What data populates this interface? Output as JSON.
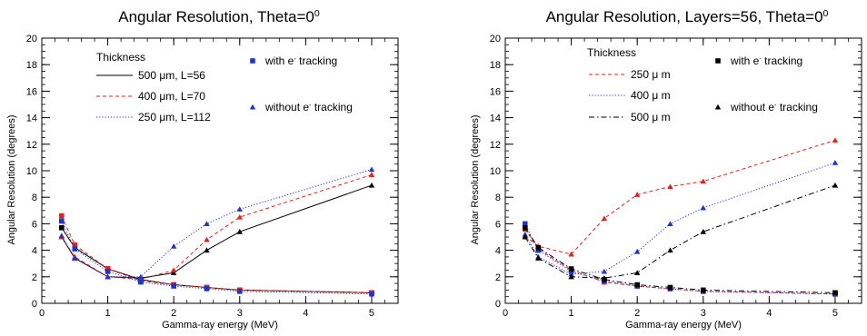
{
  "chart_data": [
    {
      "type": "line",
      "title_main": "Angular Resolution, Theta=0",
      "title_sup": "0",
      "xlabel": "Gamma-ray energy (MeV)",
      "ylabel": "Angular Resolution (degrees)",
      "xlim": [
        0,
        5.4
      ],
      "ylim": [
        0,
        20
      ],
      "xticks": [
        "0",
        "1",
        "2",
        "3",
        "4",
        "5"
      ],
      "yticks": [
        "0",
        "2",
        "4",
        "6",
        "8",
        "10",
        "12",
        "14",
        "16",
        "18",
        "20"
      ],
      "legend_title": "Thickness",
      "series": [
        {
          "name": "500 μm, L=56",
          "color": "#000000",
          "dash": "solid",
          "without": [
            [
              0.3,
              5.0
            ],
            [
              0.5,
              3.4
            ],
            [
              1,
              2.0
            ],
            [
              1.5,
              1.9
            ],
            [
              2,
              2.3
            ],
            [
              2.5,
              4.0
            ],
            [
              3,
              5.4
            ],
            [
              5,
              8.9
            ]
          ],
          "with": [
            [
              0.3,
              5.7
            ],
            [
              0.5,
              4.2
            ],
            [
              1,
              2.6
            ],
            [
              1.5,
              1.8
            ],
            [
              2,
              1.4
            ],
            [
              2.5,
              1.2
            ],
            [
              3,
              1.0
            ],
            [
              5,
              0.8
            ]
          ]
        },
        {
          "name": "400 μm, L=70",
          "color": "#e8201c",
          "dash": "dashed",
          "without": [
            [
              0.3,
              5.0
            ],
            [
              0.5,
              3.5
            ],
            [
              1,
              2.0
            ],
            [
              1.5,
              1.8
            ],
            [
              2,
              2.5
            ],
            [
              2.5,
              4.8
            ],
            [
              3,
              6.5
            ],
            [
              5,
              9.7
            ]
          ],
          "with": [
            [
              0.3,
              6.6
            ],
            [
              0.5,
              4.4
            ],
            [
              1,
              2.6
            ],
            [
              1.5,
              1.7
            ],
            [
              2,
              1.4
            ],
            [
              2.5,
              1.2
            ],
            [
              3,
              1.0
            ],
            [
              5,
              0.8
            ]
          ]
        },
        {
          "name": "250 μm, L=112",
          "color": "#2233cc",
          "dash": "dotted",
          "without": [
            [
              0.3,
              5.1
            ],
            [
              0.5,
              3.4
            ],
            [
              1,
              2.0
            ],
            [
              1.5,
              2.0
            ],
            [
              2,
              4.3
            ],
            [
              2.5,
              6.0
            ],
            [
              3,
              7.1
            ],
            [
              5,
              10.1
            ]
          ],
          "with": [
            [
              0.3,
              6.2
            ],
            [
              0.5,
              4.1
            ],
            [
              1,
              2.4
            ],
            [
              1.5,
              1.6
            ],
            [
              2,
              1.3
            ],
            [
              2.5,
              1.1
            ],
            [
              3,
              0.9
            ],
            [
              5,
              0.7
            ]
          ]
        }
      ],
      "markers": {
        "with_label": "with e",
        "with_sup": "-",
        "with_suffix": " tracking",
        "without_label": "without e",
        "without_sup": "-",
        "without_suffix": " tracking",
        "with_color": "#2233cc",
        "without_color": "#2233cc"
      }
    },
    {
      "type": "line",
      "title_main": "Angular Resolution, Layers=56, Theta=0",
      "title_sup": "0",
      "xlabel": "Gamma-ray energy (MeV)",
      "ylabel": "Angular Resolution (degrees)",
      "xlim": [
        0,
        5.4
      ],
      "ylim": [
        0,
        20
      ],
      "xticks": [
        "0",
        "1",
        "2",
        "3",
        "4",
        "5"
      ],
      "yticks": [
        "0",
        "2",
        "4",
        "6",
        "8",
        "10",
        "12",
        "14",
        "16",
        "18",
        "20"
      ],
      "legend_title": "Thickness",
      "series": [
        {
          "name": "250 μ m",
          "color": "#e8201c",
          "dash": "dashed",
          "without": [
            [
              0.3,
              5.1
            ],
            [
              0.5,
              4.3
            ],
            [
              1,
              3.7
            ],
            [
              1.5,
              6.4
            ],
            [
              2,
              8.2
            ],
            [
              2.5,
              8.8
            ],
            [
              3,
              9.2
            ],
            [
              5,
              12.3
            ]
          ],
          "with": [
            [
              0.3,
              5.6
            ],
            [
              0.5,
              4.1
            ],
            [
              1,
              2.5
            ],
            [
              1.5,
              1.6
            ],
            [
              2,
              1.3
            ],
            [
              2.5,
              1.1
            ],
            [
              3,
              0.9
            ],
            [
              5,
              0.7
            ]
          ]
        },
        {
          "name": "400 μ m",
          "color": "#2233cc",
          "dash": "dotted",
          "without": [
            [
              0.3,
              5.2
            ],
            [
              0.5,
              3.5
            ],
            [
              1,
              2.2
            ],
            [
              1.5,
              2.4
            ],
            [
              2,
              3.9
            ],
            [
              2.5,
              6.0
            ],
            [
              3,
              7.2
            ],
            [
              5,
              10.6
            ]
          ],
          "with": [
            [
              0.3,
              6.0
            ],
            [
              0.5,
              4.0
            ],
            [
              1,
              2.4
            ],
            [
              1.5,
              1.7
            ],
            [
              2,
              1.3
            ],
            [
              2.5,
              1.1
            ],
            [
              3,
              0.9
            ],
            [
              5,
              0.7
            ]
          ]
        },
        {
          "name": "500 μ m",
          "color": "#000000",
          "dash": "dashdot",
          "without": [
            [
              0.3,
              5.0
            ],
            [
              0.5,
              3.4
            ],
            [
              1,
              2.0
            ],
            [
              1.5,
              1.9
            ],
            [
              2,
              2.3
            ],
            [
              2.5,
              4.0
            ],
            [
              3,
              5.4
            ],
            [
              5,
              8.9
            ]
          ],
          "with": [
            [
              0.3,
              5.7
            ],
            [
              0.5,
              4.2
            ],
            [
              1,
              2.6
            ],
            [
              1.5,
              1.8
            ],
            [
              2,
              1.4
            ],
            [
              2.5,
              1.2
            ],
            [
              3,
              1.0
            ],
            [
              5,
              0.8
            ]
          ]
        }
      ],
      "markers": {
        "with_label": "with e",
        "with_sup": "-",
        "with_suffix": " tracking",
        "without_label": "without e",
        "without_sup": "-",
        "without_suffix": " tracking",
        "with_color": "#000000",
        "without_color": "#000000"
      }
    }
  ]
}
